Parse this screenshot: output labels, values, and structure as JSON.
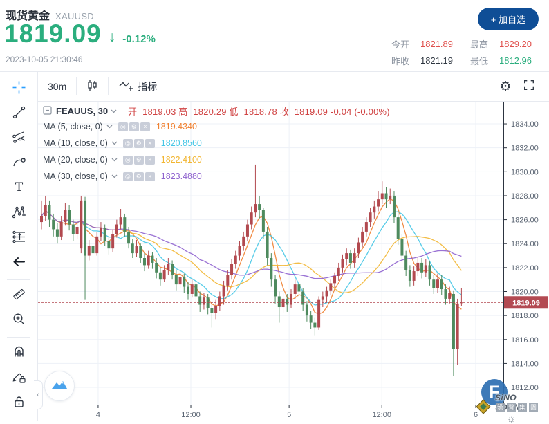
{
  "header": {
    "symbol_name": "现货黄金",
    "symbol_code": "XAUUSD",
    "price": "1819.09",
    "direction_arrow": "↓",
    "change_percent": "-0.12%",
    "timestamp": "2023-10-05 21:30:46",
    "watchlist_button": "+ 加自选",
    "stats_rows": [
      [
        {
          "label": "今开",
          "value": "1821.89",
          "color": "#e0514d"
        },
        {
          "label": "最高",
          "value": "1829.20",
          "color": "#e0514d"
        }
      ],
      [
        {
          "label": "昨收",
          "value": "1821.19",
          "color": "#2e3640"
        },
        {
          "label": "最低",
          "value": "1812.96",
          "color": "#2bae7e"
        }
      ]
    ]
  },
  "toolbar": {
    "interval": "30m",
    "indicators_label": "指标"
  },
  "side_toolbar": {
    "groups": [
      [
        "crosshair",
        "trend-line",
        "gann-tools",
        "brush",
        "text-tool",
        "xabcd-pattern",
        "forecast",
        "back-arrow"
      ],
      [
        "ruler",
        "zoom-in"
      ],
      [
        "magnet",
        "draw-lock",
        "lock"
      ]
    ],
    "collapse_glyph": "‹"
  },
  "legend": {
    "series_title": "FEAUUS, 30",
    "ohlc_text": "开=1819.03  高=1820.29  低=1818.78  收=1819.09  -0.04 (-0.00%)",
    "mas": [
      {
        "label": "MA (5, close, 0)",
        "value": "1819.4340",
        "color": "#f08030"
      },
      {
        "label": "MA (10, close, 0)",
        "value": "1820.8560",
        "color": "#45c6e6"
      },
      {
        "label": "MA (20, close, 0)",
        "value": "1822.4100",
        "color": "#f2b632"
      },
      {
        "label": "MA (30, close, 0)",
        "value": "1823.4880",
        "color": "#8f63cf"
      }
    ],
    "badge_glyphs": [
      "◎",
      "⚙",
      "×"
    ]
  },
  "chart_data": {
    "type": "candlestick",
    "interval": "30m",
    "last_price": 1819.09,
    "y_domain": [
      1810.56,
      1835.85
    ],
    "y_ticks": [
      1834,
      1832,
      1830,
      1828,
      1826,
      1824,
      1822,
      1820,
      1818,
      1816,
      1814,
      1812
    ],
    "x_labels": [
      {
        "label": "4",
        "i": 14.3
      },
      {
        "label": "12:00",
        "i": 37.7
      },
      {
        "label": "5",
        "i": 62.5
      },
      {
        "label": "12:00",
        "i": 85.9
      },
      {
        "label": "6",
        "i": 109.6
      }
    ],
    "ma_periods": [
      5,
      10,
      20,
      30
    ],
    "ma_colors": [
      "#f08030",
      "#45c6e6",
      "#f2b632",
      "#8f63cf"
    ],
    "up_color": "#b2494f",
    "down_color": "#4e8a5e",
    "grid_color": "#edf1f7",
    "axis_line_color": "#2c3440",
    "axis_text_color": "#5b6573",
    "last_price_bg": "#b34a52",
    "candles": [
      [
        1825.8,
        1827.6,
        1825.2,
        1826.3
      ],
      [
        1826.3,
        1828.0,
        1825.9,
        1827.2
      ],
      [
        1827.2,
        1827.6,
        1825.4,
        1826.0
      ],
      [
        1826.0,
        1826.5,
        1824.6,
        1825.2
      ],
      [
        1825.2,
        1825.7,
        1824.0,
        1824.6
      ],
      [
        1824.6,
        1826.3,
        1824.3,
        1825.8
      ],
      [
        1825.8,
        1827.4,
        1825.5,
        1826.8
      ],
      [
        1826.8,
        1827.2,
        1825.1,
        1825.6
      ],
      [
        1825.6,
        1826.0,
        1824.2,
        1824.8
      ],
      [
        1824.8,
        1825.9,
        1824.4,
        1825.4
      ],
      [
        1823.6,
        1828.0,
        1823.2,
        1827.6
      ],
      [
        1827.6,
        1827.9,
        1819.3,
        1823.0
      ],
      [
        1823.0,
        1824.3,
        1822.6,
        1823.8
      ],
      [
        1823.8,
        1824.2,
        1822.7,
        1823.2
      ],
      [
        1823.2,
        1825.0,
        1823.0,
        1824.6
      ],
      [
        1824.6,
        1825.8,
        1824.2,
        1825.3
      ],
      [
        1825.3,
        1825.6,
        1823.8,
        1824.2
      ],
      [
        1824.2,
        1824.6,
        1823.1,
        1823.6
      ],
      [
        1823.6,
        1825.2,
        1823.3,
        1824.8
      ],
      [
        1824.8,
        1826.0,
        1824.5,
        1825.6
      ],
      [
        1825.6,
        1826.9,
        1825.2,
        1826.2
      ],
      [
        1826.2,
        1826.5,
        1824.6,
        1825.0
      ],
      [
        1825.0,
        1825.4,
        1823.6,
        1824.0
      ],
      [
        1824.0,
        1824.4,
        1822.8,
        1823.2
      ],
      [
        1823.2,
        1824.3,
        1822.9,
        1823.8
      ],
      [
        1823.8,
        1824.0,
        1822.4,
        1822.8
      ],
      [
        1822.8,
        1823.2,
        1821.7,
        1822.2
      ],
      [
        1822.2,
        1823.4,
        1821.9,
        1823.0
      ],
      [
        1823.0,
        1823.3,
        1821.9,
        1822.4
      ],
      [
        1822.4,
        1822.8,
        1821.1,
        1821.6
      ],
      [
        1821.6,
        1822.0,
        1820.5,
        1821.0
      ],
      [
        1821.0,
        1822.2,
        1820.8,
        1821.8
      ],
      [
        1821.8,
        1822.8,
        1821.4,
        1822.3
      ],
      [
        1822.3,
        1822.6,
        1821.0,
        1821.4
      ],
      [
        1821.4,
        1821.8,
        1820.1,
        1820.6
      ],
      [
        1820.6,
        1821.6,
        1820.3,
        1821.2
      ],
      [
        1821.2,
        1821.5,
        1819.9,
        1820.4
      ],
      [
        1820.4,
        1820.8,
        1819.3,
        1819.8
      ],
      [
        1819.8,
        1821.0,
        1819.5,
        1820.6
      ],
      [
        1820.6,
        1820.9,
        1819.1,
        1819.6
      ],
      [
        1819.6,
        1820.0,
        1818.3,
        1818.9
      ],
      [
        1818.9,
        1819.9,
        1818.5,
        1819.5
      ],
      [
        1819.5,
        1819.8,
        1818.1,
        1818.6
      ],
      [
        1818.6,
        1819.0,
        1817.0,
        1818.2
      ],
      [
        1818.2,
        1819.3,
        1817.7,
        1818.8
      ],
      [
        1818.8,
        1820.0,
        1818.4,
        1819.6
      ],
      [
        1819.6,
        1820.9,
        1818.9,
        1820.5
      ],
      [
        1820.5,
        1821.8,
        1820.1,
        1821.4
      ],
      [
        1821.4,
        1822.7,
        1821.0,
        1822.3
      ],
      [
        1822.3,
        1823.4,
        1821.9,
        1823.0
      ],
      [
        1823.0,
        1824.2,
        1822.6,
        1823.8
      ],
      [
        1823.8,
        1825.0,
        1823.4,
        1824.6
      ],
      [
        1824.6,
        1826.0,
        1824.2,
        1825.6
      ],
      [
        1825.6,
        1827.1,
        1825.2,
        1826.6
      ],
      [
        1826.6,
        1830.6,
        1826.2,
        1827.3
      ],
      [
        1827.3,
        1828.0,
        1826.1,
        1826.8
      ],
      [
        1826.8,
        1827.0,
        1824.4,
        1825.0
      ],
      [
        1825.0,
        1825.4,
        1822.2,
        1822.8
      ],
      [
        1822.8,
        1823.2,
        1820.4,
        1821.0
      ],
      [
        1821.0,
        1821.4,
        1819.0,
        1819.6
      ],
      [
        1819.6,
        1820.0,
        1817.4,
        1818.7
      ],
      [
        1818.7,
        1819.9,
        1818.2,
        1819.4
      ],
      [
        1819.4,
        1819.8,
        1818.3,
        1818.9
      ],
      [
        1818.9,
        1820.2,
        1818.6,
        1819.8
      ],
      [
        1819.8,
        1821.0,
        1819.4,
        1820.6
      ],
      [
        1820.6,
        1820.9,
        1819.5,
        1820.0
      ],
      [
        1820.0,
        1820.3,
        1818.4,
        1818.9
      ],
      [
        1818.9,
        1819.2,
        1817.5,
        1818.0
      ],
      [
        1818.0,
        1818.4,
        1816.9,
        1817.4
      ],
      [
        1817.4,
        1817.8,
        1816.3,
        1817.0
      ],
      [
        1817.0,
        1819.6,
        1816.8,
        1819.3
      ],
      [
        1819.3,
        1820.0,
        1818.7,
        1819.6
      ],
      [
        1819.6,
        1820.4,
        1819.1,
        1820.1
      ],
      [
        1820.1,
        1821.0,
        1819.7,
        1820.7
      ],
      [
        1820.7,
        1821.6,
        1820.3,
        1821.3
      ],
      [
        1821.3,
        1822.4,
        1820.9,
        1822.0
      ],
      [
        1822.0,
        1823.1,
        1821.6,
        1822.7
      ],
      [
        1822.7,
        1823.6,
        1822.2,
        1823.2
      ],
      [
        1823.2,
        1823.5,
        1821.9,
        1822.4
      ],
      [
        1822.4,
        1823.6,
        1822.0,
        1823.2
      ],
      [
        1823.2,
        1824.5,
        1822.8,
        1824.1
      ],
      [
        1824.1,
        1825.4,
        1823.7,
        1825.0
      ],
      [
        1825.0,
        1826.2,
        1824.6,
        1825.8
      ],
      [
        1825.8,
        1827.0,
        1825.4,
        1826.6
      ],
      [
        1826.6,
        1827.6,
        1826.1,
        1827.1
      ],
      [
        1827.1,
        1828.4,
        1826.7,
        1827.7
      ],
      [
        1827.7,
        1829.2,
        1827.3,
        1828.2
      ],
      [
        1828.2,
        1828.7,
        1827.0,
        1827.7
      ],
      [
        1827.7,
        1828.6,
        1827.3,
        1828.0
      ],
      [
        1828.0,
        1828.4,
        1825.7,
        1826.2
      ],
      [
        1826.2,
        1826.6,
        1823.9,
        1824.4
      ],
      [
        1824.4,
        1824.8,
        1822.5,
        1823.0
      ],
      [
        1823.0,
        1823.4,
        1821.3,
        1821.8
      ],
      [
        1821.8,
        1822.2,
        1820.4,
        1820.9
      ],
      [
        1820.9,
        1822.1,
        1820.5,
        1821.7
      ],
      [
        1821.7,
        1822.9,
        1821.3,
        1822.4
      ],
      [
        1822.4,
        1822.8,
        1821.1,
        1821.6
      ],
      [
        1821.6,
        1822.7,
        1821.2,
        1822.2
      ],
      [
        1822.2,
        1822.5,
        1820.5,
        1821.0
      ],
      [
        1821.0,
        1821.4,
        1819.8,
        1820.3
      ],
      [
        1820.3,
        1821.5,
        1819.9,
        1821.0
      ],
      [
        1821.0,
        1821.4,
        1819.7,
        1820.2
      ],
      [
        1820.2,
        1820.6,
        1818.9,
        1819.4
      ],
      [
        1819.4,
        1820.4,
        1819.0,
        1819.9
      ],
      [
        1819.8,
        1820.1,
        1812.96,
        1815.2
      ],
      [
        1815.2,
        1819.4,
        1813.9,
        1819.0
      ],
      [
        1819.03,
        1820.29,
        1818.78,
        1819.09
      ]
    ]
  },
  "watermark": {
    "monogram": "F",
    "brand": "SiNO SOUND",
    "brand_cn_chars": [
      "漢",
      "聲",
      "集",
      "團"
    ],
    "sun_glyph": "☼"
  }
}
